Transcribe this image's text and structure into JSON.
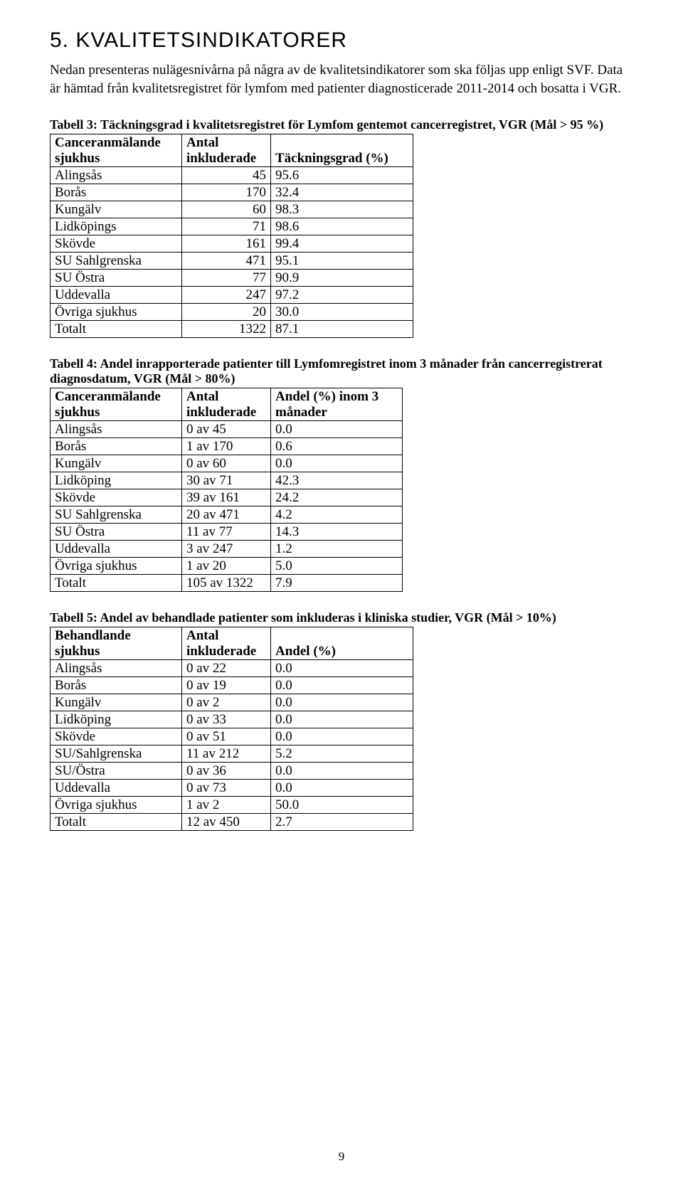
{
  "section": {
    "heading": "5. KVALITETSINDIKATORER",
    "intro": "Nedan presenteras nulägesnivårna på några av de kvalitetsindikatorer som ska följas upp enligt SVF. Data är hämtad från kvalitetsregistret för lymfom med patienter diagnosticerade 2011-2014 och bosatta i VGR."
  },
  "table3": {
    "caption": "Tabell 3: Täckningsgrad i kvalitetsregistret för Lymfom gentemot cancerregistret, VGR (Mål > 95 %)",
    "columns": [
      "Canceranmälande sjukhus",
      "Antal inkluderade",
      "Täckningsgrad (%)"
    ],
    "rows": [
      [
        "Alingsås",
        "45",
        "95.6"
      ],
      [
        "Borås",
        "170",
        "32.4"
      ],
      [
        "Kungälv",
        "60",
        "98.3"
      ],
      [
        "Lidköpings",
        "71",
        "98.6"
      ],
      [
        "Skövde",
        "161",
        "99.4"
      ],
      [
        "SU Sahlgrenska",
        "471",
        "95.1"
      ],
      [
        "SU Östra",
        "77",
        "90.9"
      ],
      [
        "Uddevalla",
        "247",
        "97.2"
      ],
      [
        "Övriga sjukhus",
        "20",
        "30.0"
      ],
      [
        "Totalt",
        "1322",
        "87.1"
      ]
    ]
  },
  "table4": {
    "caption": "Tabell 4: Andel inrapporterade patienter till Lymfomregistret inom 3 månader från cancerregistrerat diagnosdatum, VGR (Mål > 80%)",
    "columns": [
      "Canceranmälande sjukhus",
      "Antal inkluderade",
      "Andel (%) inom 3 månader"
    ],
    "rows": [
      [
        "Alingsås",
        "0 av 45",
        "0.0"
      ],
      [
        "Borås",
        "1 av 170",
        "0.6"
      ],
      [
        "Kungälv",
        "0 av 60",
        "0.0"
      ],
      [
        "Lidköping",
        "30 av 71",
        "42.3"
      ],
      [
        "Skövde",
        "39 av 161",
        "24.2"
      ],
      [
        "SU Sahlgrenska",
        "20 av 471",
        "4.2"
      ],
      [
        "SU Östra",
        "11 av 77",
        "14.3"
      ],
      [
        "Uddevalla",
        "3 av 247",
        "1.2"
      ],
      [
        "Övriga sjukhus",
        "1 av 20",
        "5.0"
      ],
      [
        "Totalt",
        "105 av 1322",
        "7.9"
      ]
    ]
  },
  "table5": {
    "caption": "Tabell 5: Andel av behandlade patienter som inkluderas i kliniska studier, VGR (Mål > 10%)",
    "columns": [
      "Behandlande sjukhus",
      "Antal inkluderade",
      "Andel (%)"
    ],
    "rows": [
      [
        "Alingsås",
        "0 av 22",
        "0.0"
      ],
      [
        "Borås",
        "0 av 19",
        "0.0"
      ],
      [
        "Kungälv",
        "0 av 2",
        "0.0"
      ],
      [
        "Lidköping",
        "0 av 33",
        "0.0"
      ],
      [
        "Skövde",
        "0 av 51",
        "0.0"
      ],
      [
        "SU/Sahlgrenska",
        "11 av 212",
        "5.2"
      ],
      [
        "SU/Östra",
        "0 av 36",
        "0.0"
      ],
      [
        "Uddevalla",
        "0 av 73",
        "0.0"
      ],
      [
        "Övriga sjukhus",
        "1 av 2",
        "50.0"
      ],
      [
        "Totalt",
        "12 av 450",
        "2.7"
      ]
    ]
  },
  "pageNumber": "9"
}
